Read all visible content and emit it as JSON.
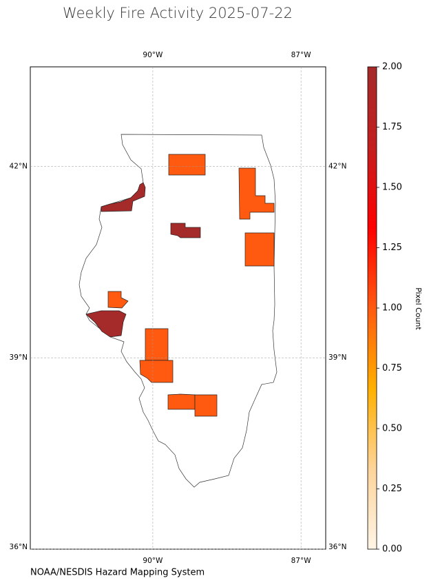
{
  "chart_data": {
    "type": "choropleth",
    "title": "Weekly Fire Activity 2025-07-22",
    "credit": "NOAA/NESDIS Hazard Mapping System",
    "colorbar_label": "Pixel Count",
    "xlim": [
      -92.48,
      -86.5
    ],
    "ylim": [
      36.0,
      43.56
    ],
    "xticks": [
      {
        "value": -90,
        "label": "90°W"
      },
      {
        "value": -87,
        "label": "87°W"
      }
    ],
    "yticks": [
      {
        "value": 42,
        "label": "42°N"
      },
      {
        "value": 39,
        "label": "39°N"
      },
      {
        "value": 36,
        "label": "36°N"
      }
    ],
    "grid": true,
    "values": [
      1,
      1,
      1,
      2,
      2,
      1,
      2,
      1,
      1,
      1,
      1
    ],
    "clim": [
      0,
      2
    ],
    "cticks": [
      {
        "value": 0,
        "label": "0.00"
      },
      {
        "value": 0.25,
        "label": "0.25"
      },
      {
        "value": 0.5,
        "label": "0.50"
      },
      {
        "value": 0.75,
        "label": "0.75"
      },
      {
        "value": 1,
        "label": "1.00"
      },
      {
        "value": 1.25,
        "label": "1.25"
      },
      {
        "value": 1.5,
        "label": "1.50"
      },
      {
        "value": 1.75,
        "label": "1.75"
      },
      {
        "value": 2,
        "label": "2.00"
      }
    ],
    "colormap": [
      "#fff5e6",
      "#fdd49a",
      "#ffb000",
      "#ff5a10",
      "#ff0000",
      "#c41e1e",
      "#a52a2a"
    ]
  }
}
